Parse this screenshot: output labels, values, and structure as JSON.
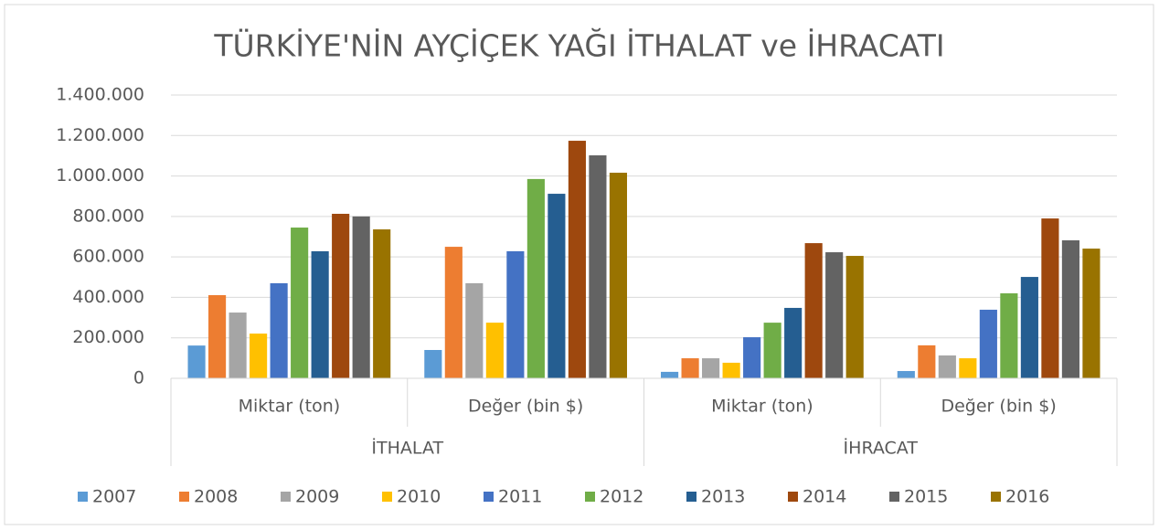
{
  "chart_data": {
    "type": "bar",
    "title": "TÜRKİYE'NİN AYÇİÇEK YAĞI İTHALAT ve İHRACATI",
    "groups": [
      {
        "label": "İTHALAT",
        "categories": [
          "Miktar (ton)",
          "Değer (bin $)"
        ]
      },
      {
        "label": "İHRACAT",
        "categories": [
          "Miktar (ton)",
          "Değer (bin $)"
        ]
      }
    ],
    "series": [
      {
        "name": "2007",
        "color": "#5b9bd5",
        "values": [
          162000,
          140000,
          32000,
          36000
        ]
      },
      {
        "name": "2008",
        "color": "#ed7d31",
        "values": [
          411000,
          650000,
          99000,
          163000
        ]
      },
      {
        "name": "2009",
        "color": "#a5a5a5",
        "values": [
          325000,
          470000,
          99000,
          113000
        ]
      },
      {
        "name": "2010",
        "color": "#ffc000",
        "values": [
          221000,
          275000,
          77000,
          99000
        ]
      },
      {
        "name": "2011",
        "color": "#4472c4",
        "values": [
          470000,
          628000,
          203000,
          339000
        ]
      },
      {
        "name": "2012",
        "color": "#70ad47",
        "values": [
          745000,
          985000,
          275000,
          420000
        ]
      },
      {
        "name": "2013",
        "color": "#255e91",
        "values": [
          628000,
          912000,
          348000,
          501000
        ]
      },
      {
        "name": "2014",
        "color": "#9e480e",
        "values": [
          813000,
          1174000,
          668000,
          790000
        ]
      },
      {
        "name": "2015",
        "color": "#636363",
        "values": [
          800000,
          1102000,
          623000,
          682000
        ]
      },
      {
        "name": "2016",
        "color": "#997300",
        "values": [
          736000,
          1016000,
          605000,
          641000
        ]
      }
    ],
    "ylim": [
      0,
      1400000
    ],
    "yticks": [
      0,
      {
        "value": 200000,
        "label": "200.000"
      },
      {
        "value": 400000,
        "label": "400.000"
      },
      {
        "value": 600000,
        "label": "600.000"
      },
      {
        "value": 800000,
        "label": "800.000"
      },
      {
        "value": 1000000,
        "label": "1.000.000"
      },
      {
        "value": 1200000,
        "label": "1.200.000"
      },
      {
        "value": 1400000,
        "label": "1.400.000"
      }
    ],
    "grid": true,
    "legend": "bottom"
  }
}
